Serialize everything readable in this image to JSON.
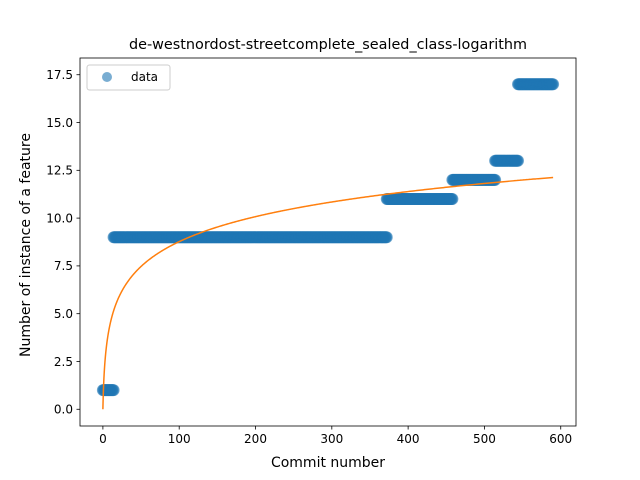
{
  "chart_data": {
    "type": "scatter",
    "title": "de-westnordost-streetcomplete_sealed_class-logarithm",
    "xlabel": "Commit number",
    "ylabel": "Number of instance of a feature",
    "xlim": [
      -30,
      620
    ],
    "ylim": [
      -0.875,
      18.375
    ],
    "xticks": [
      0,
      100,
      200,
      300,
      400,
      500,
      600
    ],
    "xtick_labels": [
      "0",
      "100",
      "200",
      "300",
      "400",
      "500",
      "600"
    ],
    "yticks": [
      0,
      2.5,
      5,
      7.5,
      10,
      12.5,
      15,
      17.5
    ],
    "ytick_labels": [
      "0.0",
      "2.5",
      "5.0",
      "7.5",
      "10.0",
      "12.5",
      "15.0",
      "17.5"
    ],
    "grid": false,
    "legend": {
      "position": "top-left",
      "entries": [
        "data"
      ]
    },
    "series": [
      {
        "name": "data",
        "kind": "scatter",
        "color": "#1f77b4",
        "segments": [
          {
            "x_start": 0,
            "x_end": 14,
            "y": 1
          },
          {
            "x_start": 14,
            "x_end": 372,
            "y": 9
          },
          {
            "x_start": 372,
            "x_end": 458,
            "y": 11
          },
          {
            "x_start": 458,
            "x_end": 514,
            "y": 12
          },
          {
            "x_start": 514,
            "x_end": 544,
            "y": 13
          },
          {
            "x_start": 544,
            "x_end": 590,
            "y": 17
          }
        ]
      },
      {
        "kind": "line",
        "color": "#ff7f0e",
        "fit": {
          "model": "logarithmic",
          "a": 1.9,
          "b": 0,
          "x_start": 0,
          "x_end": 590
        }
      }
    ]
  }
}
